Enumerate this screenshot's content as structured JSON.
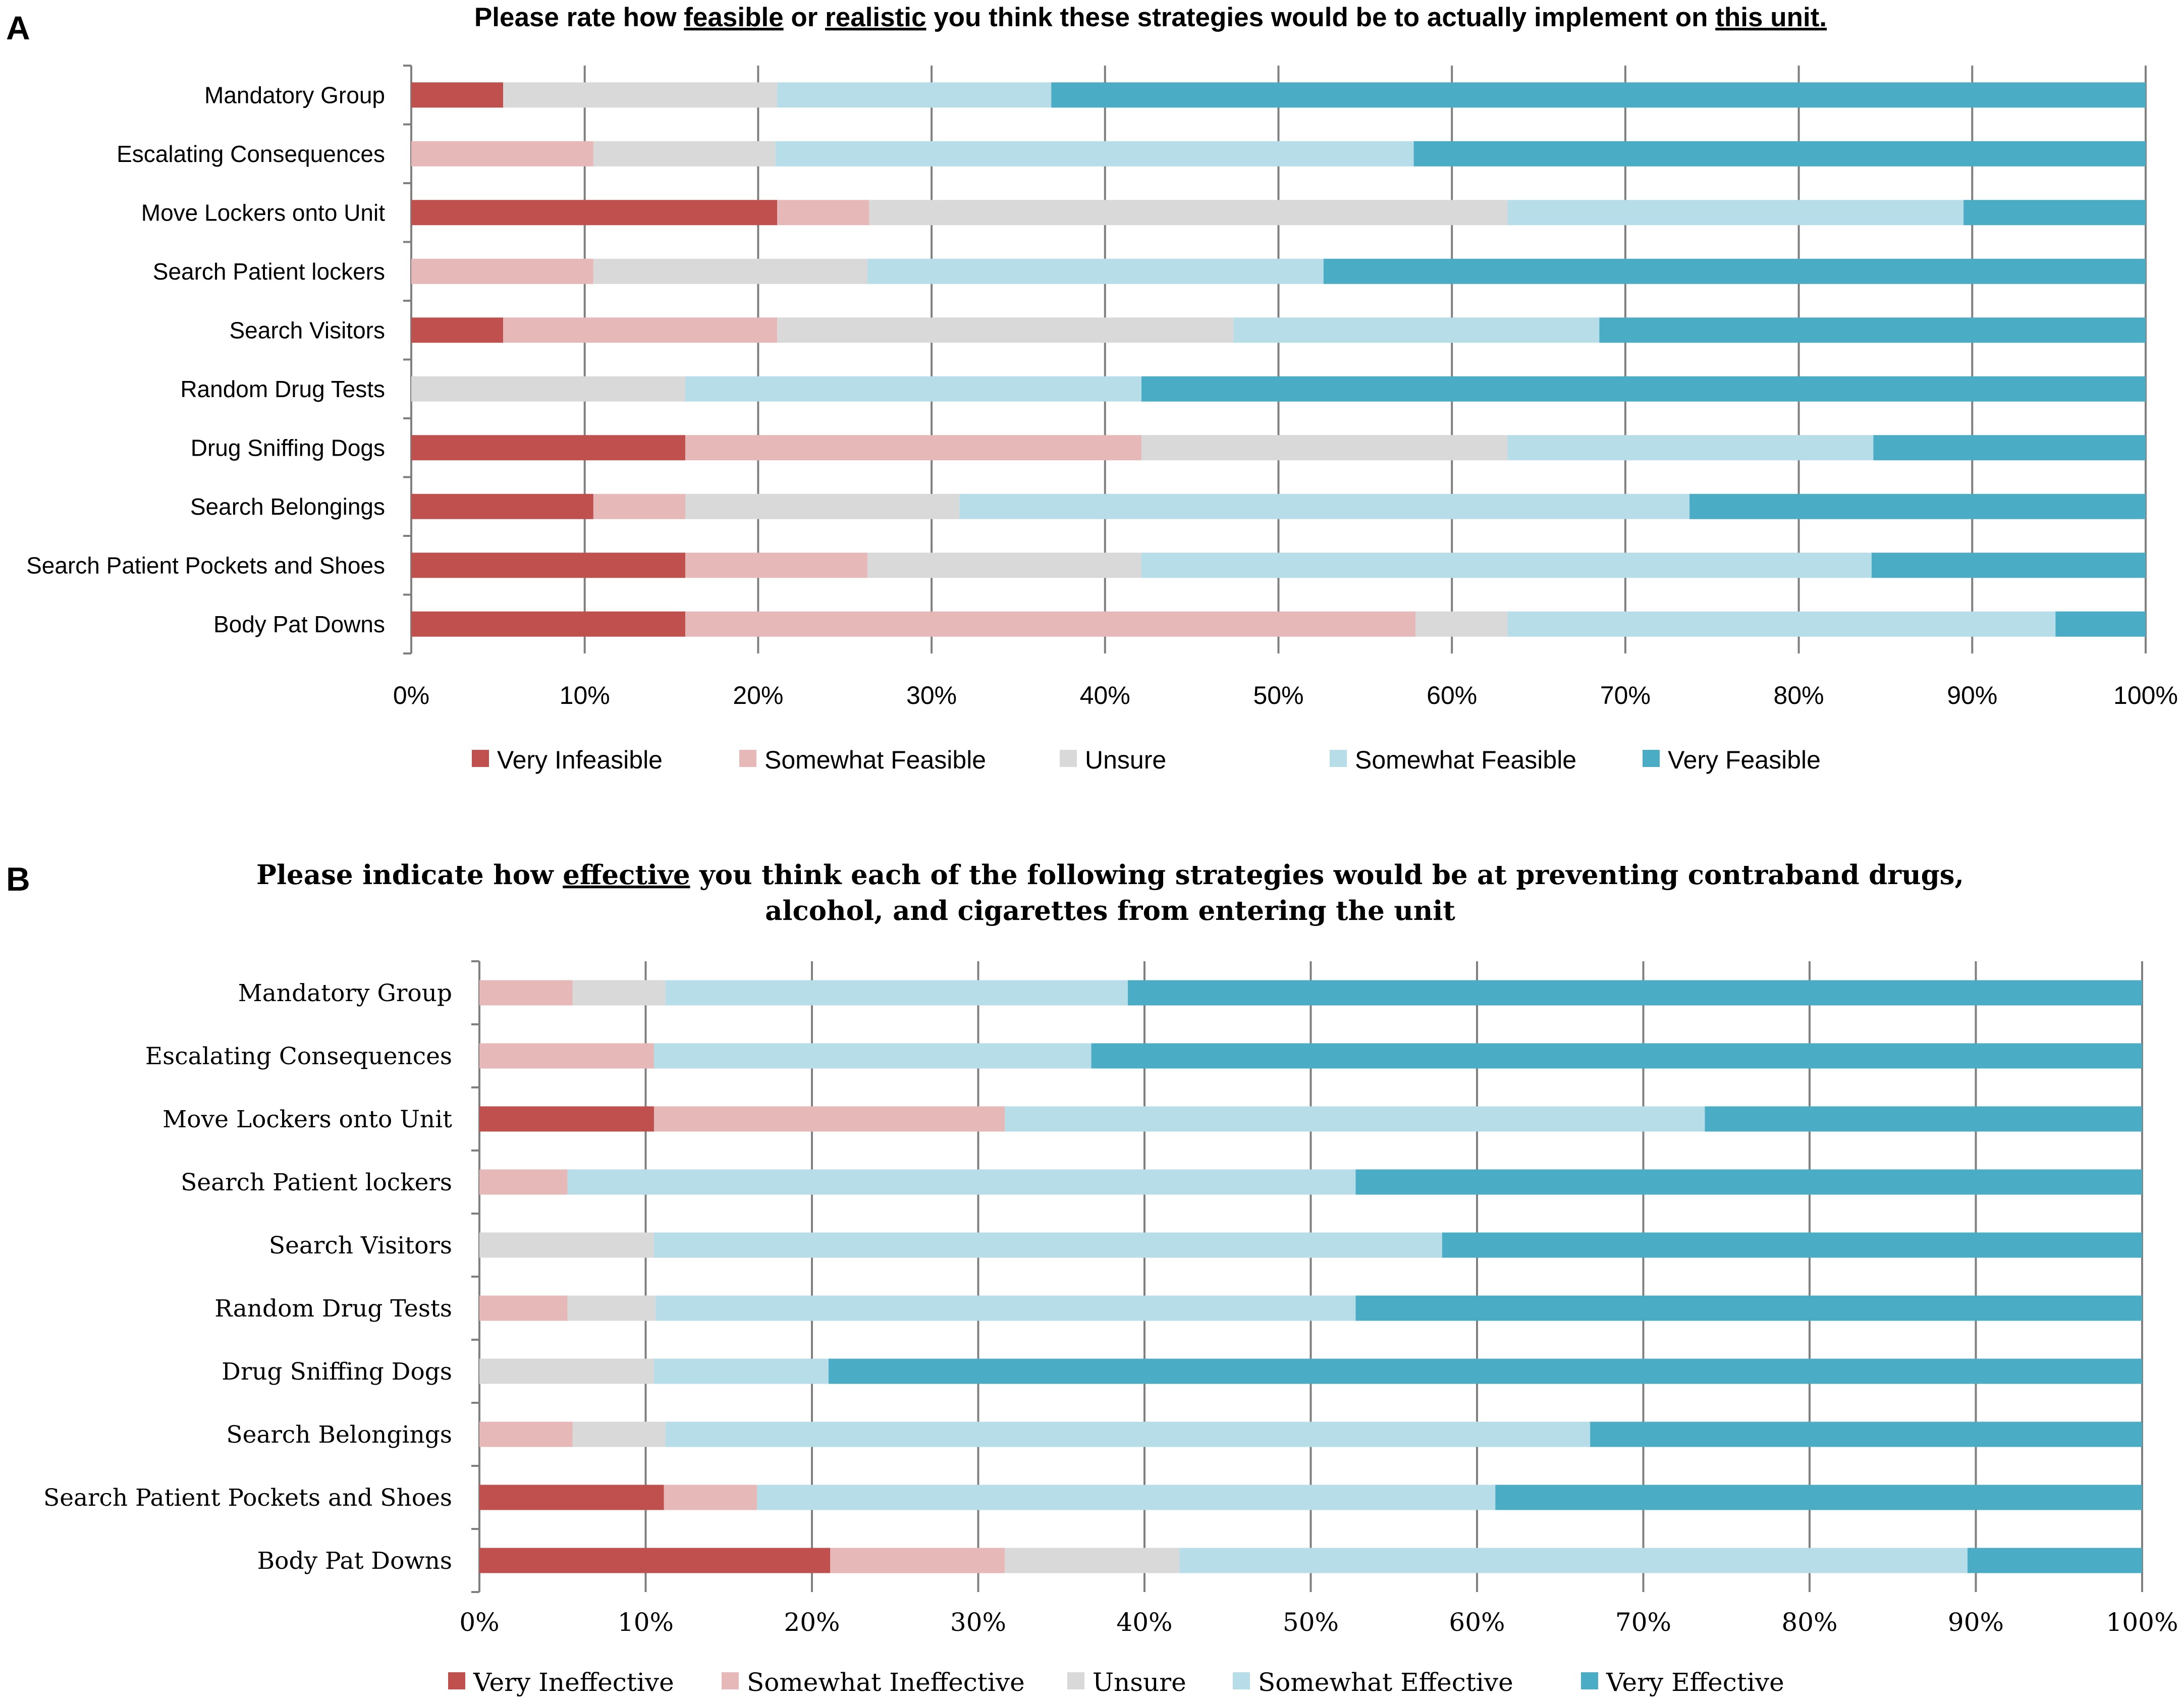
{
  "chart_data": [
    {
      "panel_label": "A",
      "type": "bar",
      "orientation": "horizontal",
      "stacked": "percent",
      "title_parts": [
        {
          "text": "Please rate how ",
          "underline": false
        },
        {
          "text": "feasible",
          "underline": true
        },
        {
          "text": " or ",
          "underline": false
        },
        {
          "text": "realistic",
          "underline": true
        },
        {
          "text": " you think these strategies would be to actually implement on ",
          "underline": false
        },
        {
          "text": "this unit.",
          "underline": true
        }
      ],
      "categories": [
        "Mandatory Group",
        "Escalating Consequences",
        "Move Lockers onto Unit",
        "Search Patient lockers",
        "Search Visitors",
        "Random Drug Tests",
        "Drug Sniffing Dogs",
        "Search Belongings",
        "Search Patient Pockets and Shoes",
        "Body Pat Downs"
      ],
      "xlim": [
        0,
        100
      ],
      "x_ticks": [
        "0%",
        "10%",
        "20%",
        "30%",
        "40%",
        "50%",
        "60%",
        "70%",
        "80%",
        "90%",
        "100%"
      ],
      "legend_position": "bottom",
      "series": [
        {
          "name": "Very Infeasible",
          "color": "#c0504d",
          "values": [
            5.3,
            0,
            21.1,
            0,
            5.3,
            0,
            15.8,
            10.5,
            15.8,
            15.8
          ]
        },
        {
          "name": "Somewhat Feasible",
          "color": "#e6b9b8",
          "values": [
            0,
            10.5,
            5.3,
            10.5,
            15.8,
            0,
            26.3,
            5.3,
            10.5,
            42.1
          ]
        },
        {
          "name": "Unsure",
          "color": "#d9d9d9",
          "values": [
            15.8,
            10.5,
            36.8,
            15.8,
            26.3,
            15.8,
            21.1,
            15.8,
            15.8,
            5.3
          ]
        },
        {
          "name": "Somewhat Feasible",
          "color": "#b7dde8",
          "values": [
            15.8,
            36.8,
            26.3,
            26.3,
            21.1,
            26.3,
            21.1,
            42.1,
            42.1,
            31.6
          ]
        },
        {
          "name": "Very Feasible",
          "color": "#4bacc6",
          "values": [
            63.1,
            42.2,
            10.5,
            47.4,
            31.5,
            57.9,
            15.7,
            26.3,
            15.8,
            5.2
          ]
        }
      ]
    },
    {
      "panel_label": "B",
      "type": "bar",
      "orientation": "horizontal",
      "stacked": "percent",
      "title_parts": [
        {
          "text": "Please indicate how ",
          "underline": false
        },
        {
          "text": "effective",
          "underline": true
        },
        {
          "text": " you think each of the following strategies would be at preventing contraband drugs,",
          "underline": false
        }
      ],
      "title_line2": "alcohol, and cigarettes from entering the unit",
      "categories": [
        "Mandatory Group",
        "Escalating Consequences",
        "Move Lockers onto Unit",
        "Search Patient lockers",
        "Search Visitors",
        "Random Drug Tests",
        "Drug Sniffing Dogs",
        "Search Belongings",
        "Search Patient Pockets and Shoes",
        "Body Pat Downs"
      ],
      "xlim": [
        0,
        100
      ],
      "x_ticks": [
        "0%",
        "10%",
        "20%",
        "30%",
        "40%",
        "50%",
        "60%",
        "70%",
        "80%",
        "90%",
        "100%"
      ],
      "legend_position": "bottom",
      "series": [
        {
          "name": "Very Ineffective",
          "color": "#c0504d",
          "values": [
            0,
            0,
            10.5,
            0,
            0,
            0,
            0,
            0,
            11.1,
            21.1
          ]
        },
        {
          "name": "Somewhat Ineffective",
          "color": "#e6b9b8",
          "values": [
            5.6,
            10.5,
            21.1,
            5.3,
            0,
            5.3,
            0,
            5.6,
            5.6,
            10.5
          ]
        },
        {
          "name": "Unsure",
          "color": "#d9d9d9",
          "values": [
            5.6,
            0,
            0,
            0,
            10.5,
            5.3,
            10.5,
            5.6,
            0,
            10.5
          ]
        },
        {
          "name": "Somewhat Effective",
          "color": "#b7dde8",
          "values": [
            27.8,
            26.3,
            42.1,
            47.4,
            47.4,
            42.1,
            10.5,
            55.6,
            44.4,
            47.4
          ]
        },
        {
          "name": "Very Effective",
          "color": "#4bacc6",
          "values": [
            61.0,
            63.2,
            26.3,
            47.3,
            42.1,
            47.3,
            79.0,
            33.2,
            38.9,
            10.5
          ]
        }
      ]
    }
  ]
}
